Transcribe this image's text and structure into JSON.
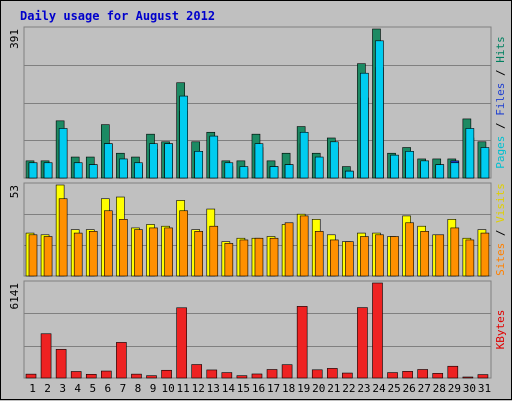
{
  "chart_data": {
    "type": "bar",
    "title": "Daily usage for August 2012",
    "days": [
      "1",
      "2",
      "3",
      "4",
      "5",
      "6",
      "7",
      "8",
      "9",
      "10",
      "11",
      "12",
      "13",
      "14",
      "15",
      "16",
      "17",
      "18",
      "19",
      "20",
      "21",
      "22",
      "23",
      "24",
      "25",
      "26",
      "27",
      "28",
      "29",
      "30",
      "31"
    ],
    "weekend_days": [
      "4",
      "5",
      "11",
      "12",
      "18",
      "19",
      "25",
      "26"
    ],
    "panels": [
      {
        "name": "hits-files-pages",
        "max_label": "391",
        "ymax": 391,
        "labels": [
          "Pages",
          "Files",
          "Hits"
        ],
        "label_colors": [
          "#00c0d0",
          "#2040d0",
          "#008060"
        ],
        "series": [
          {
            "name": "Hits",
            "color": "#1c8a63",
            "values": [
              45,
              45,
              150,
              55,
              55,
              140,
              65,
              55,
              115,
              95,
              250,
              95,
              120,
              45,
              45,
              115,
              45,
              65,
              135,
              65,
              105,
              30,
              300,
              391,
              65,
              80,
              50,
              50,
              50,
              155,
              95
            ]
          },
          {
            "name": "Files",
            "color": "#2040d0",
            "values": [
              40,
              40,
              100,
              40,
              35,
              90,
              45,
              35,
              75,
              90,
              175,
              70,
              90,
              30,
              25,
              80,
              30,
              35,
              90,
              50,
              80,
              18,
              210,
              290,
              50,
              50,
              40,
              35,
              45,
              105,
              75
            ]
          },
          {
            "name": "Pages",
            "color": "#00ccf0",
            "values": [
              40,
              40,
              130,
              40,
              35,
              90,
              50,
              40,
              90,
              90,
              215,
              70,
              110,
              40,
              30,
              90,
              30,
              35,
              120,
              55,
              95,
              18,
              275,
              360,
              60,
              70,
              45,
              35,
              40,
              130,
              80
            ]
          }
        ]
      },
      {
        "name": "sites-visits",
        "max_label": "53",
        "ymax": 53,
        "labels": [
          "Sites",
          "Visits"
        ],
        "label_colors": [
          "#ff8000",
          "#e0d000"
        ],
        "series": [
          {
            "name": "Visits",
            "color": "#ffff00",
            "values": [
              25,
              24,
              53,
              27,
              27,
              45,
              46,
              28,
              30,
              29,
              44,
              27,
              39,
              20,
              22,
              22,
              23,
              30,
              36,
              33,
              24,
              20,
              25,
              25,
              23,
              35,
              29,
              24,
              33,
              22,
              27
            ]
          },
          {
            "name": "Sites",
            "color": "#ff9000",
            "values": [
              24,
              23,
              45,
              25,
              26,
              38,
              33,
              27,
              28,
              28,
              38,
              26,
              29,
              19,
              21,
              22,
              22,
              31,
              35,
              26,
              21,
              20,
              23,
              24,
              23,
              31,
              26,
              24,
              28,
              21,
              25
            ]
          }
        ]
      },
      {
        "name": "kbytes",
        "max_label": "6141",
        "ymax": 6141,
        "labels": [
          "KBytes"
        ],
        "label_colors": [
          "#e00000"
        ],
        "series": [
          {
            "name": "KBytes",
            "color": "#ee2222",
            "values": [
              250,
              2860,
              1850,
              420,
              240,
              450,
              2300,
              250,
              150,
              500,
              4540,
              870,
              520,
              350,
              150,
              260,
              550,
              860,
              4630,
              530,
              620,
              320,
              4550,
              6141,
              350,
              430,
              550,
              300,
              760,
              50,
              220
            ]
          }
        ]
      }
    ]
  }
}
